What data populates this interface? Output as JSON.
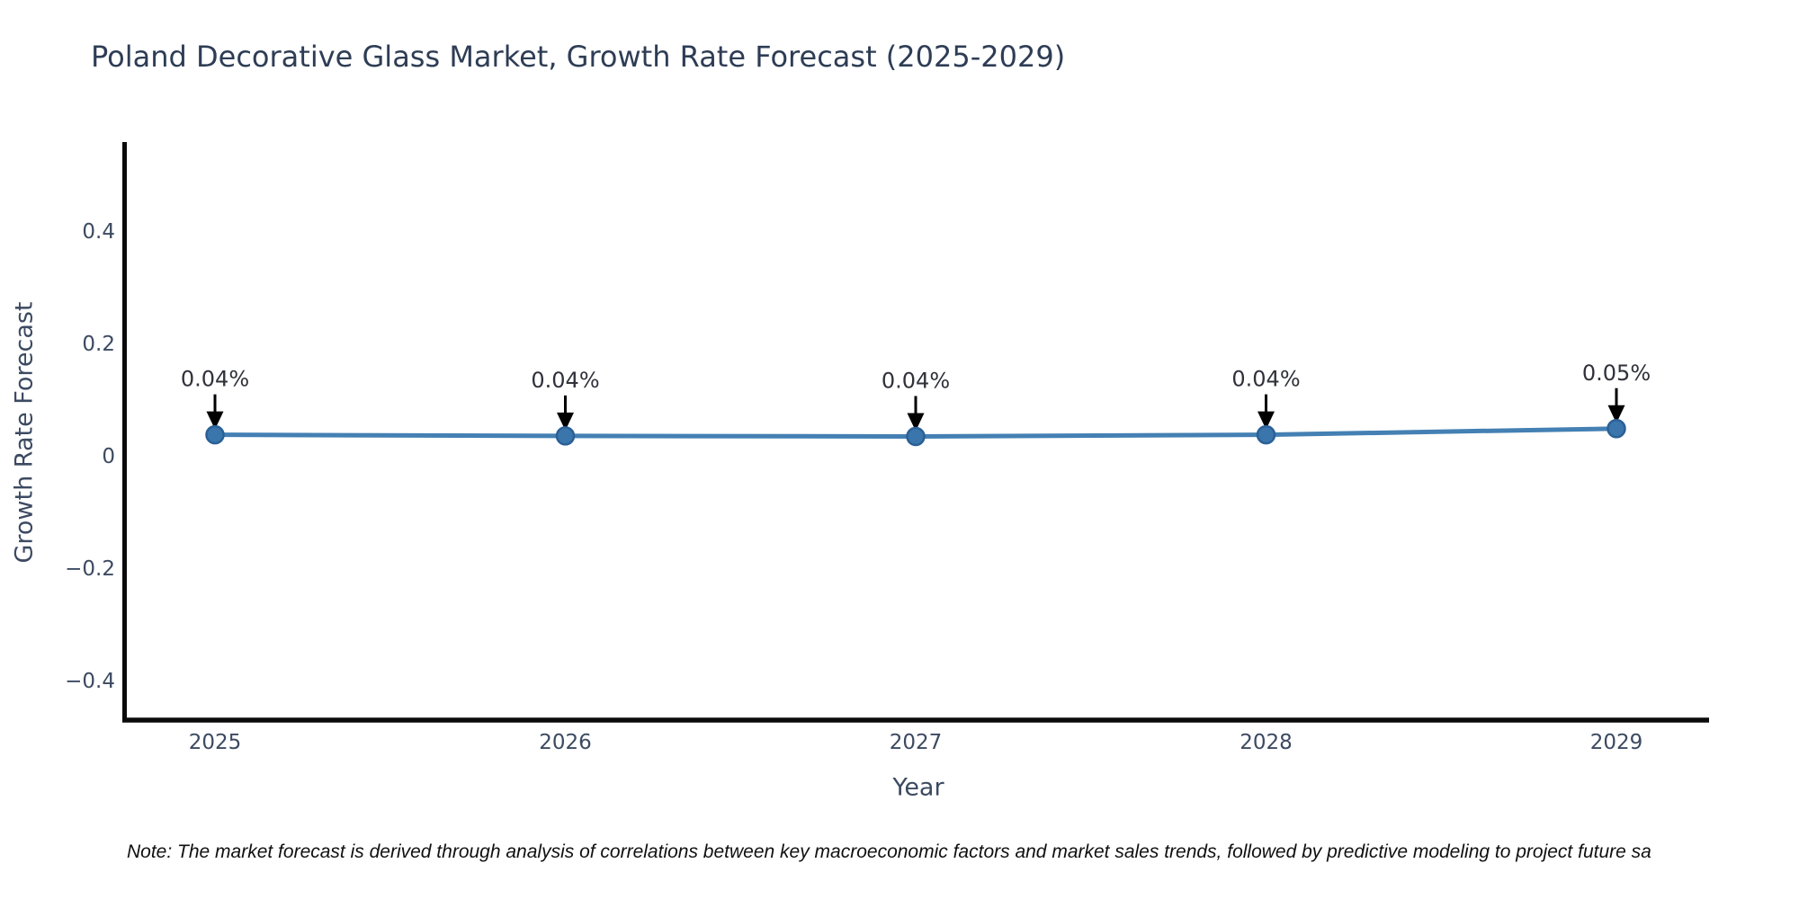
{
  "title": {
    "text": "Poland Decorative Glass Market, Growth Rate Forecast (2025-2029)",
    "color": "#2e3d55"
  },
  "note": {
    "text": "Note: The market forecast is derived through analysis of correlations between key macroeconomic factors and market sales trends, followed by predictive modeling to project future sa"
  },
  "chart_data": {
    "type": "line",
    "title": "Poland Decorative Glass Market, Growth Rate Forecast (2025-2029)",
    "xlabel": "Year",
    "ylabel": "Growth Rate Forecast",
    "x": [
      2025,
      2026,
      2027,
      2028,
      2029
    ],
    "series": [
      {
        "name": "Growth Rate Forecast",
        "values": [
          0.039,
          0.037,
          0.036,
          0.039,
          0.05
        ]
      }
    ],
    "point_labels": [
      "0.04%",
      "0.04%",
      "0.04%",
      "0.04%",
      "0.05%"
    ],
    "xtick_labels": [
      "2025",
      "2026",
      "2027",
      "2028",
      "2029"
    ],
    "yticks": [
      0.4,
      0.2,
      0,
      -0.2,
      -0.4
    ],
    "ytick_labels": [
      "0.4",
      "0.2",
      "0",
      "−0.2",
      "−0.4"
    ],
    "ylim": [
      -0.47,
      0.56
    ],
    "xlim": [
      2024.74,
      2029.26
    ],
    "grid": false,
    "legend": "none",
    "colors": {
      "line": "#4480b3",
      "marker_fill": "#3a76ab",
      "marker_edge": "#2a6097",
      "spine": "#0b0b0b",
      "tick_text": "#3c4a61",
      "annotation_text": "#30313a",
      "arrow": "#000000"
    }
  }
}
